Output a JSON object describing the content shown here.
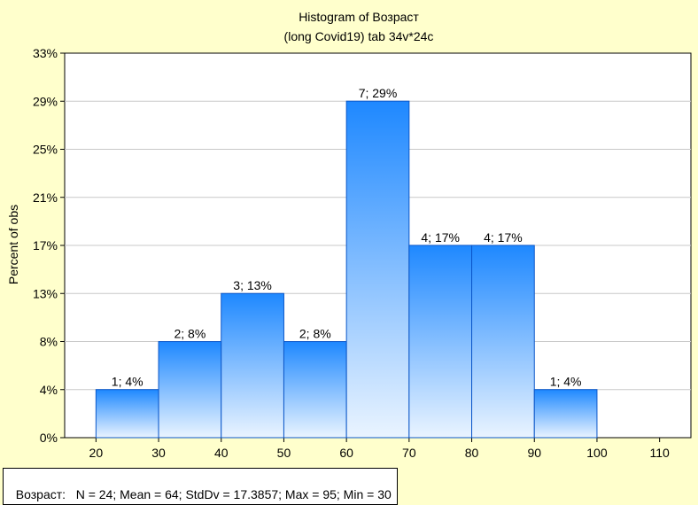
{
  "chart_data": {
    "type": "bar",
    "title": "Histogram of Возраст",
    "subtitle": "(long Covid19) tab 34v*24c",
    "ylabel": "Percent of obs",
    "xlabel": "",
    "x_ticks": [
      20,
      30,
      40,
      50,
      60,
      70,
      80,
      90,
      100,
      110
    ],
    "y_ticks": [
      "0%",
      "4%",
      "8%",
      "13%",
      "17%",
      "21%",
      "25%",
      "29%",
      "33%"
    ],
    "ylim": [
      0,
      33.33
    ],
    "xlim": [
      15,
      115
    ],
    "bins": [
      {
        "from": 20,
        "to": 30,
        "count": 1,
        "percent": 4.17,
        "label": "1; 4%"
      },
      {
        "from": 30,
        "to": 40,
        "count": 2,
        "percent": 8.33,
        "label": "2; 8%"
      },
      {
        "from": 40,
        "to": 50,
        "count": 3,
        "percent": 12.5,
        "label": "3; 13%"
      },
      {
        "from": 50,
        "to": 60,
        "count": 2,
        "percent": 8.33,
        "label": "2; 8%"
      },
      {
        "from": 60,
        "to": 70,
        "count": 7,
        "percent": 29.17,
        "label": "7; 29%"
      },
      {
        "from": 70,
        "to": 80,
        "count": 4,
        "percent": 16.67,
        "label": "4; 17%"
      },
      {
        "from": 80,
        "to": 90,
        "count": 4,
        "percent": 16.67,
        "label": "4; 17%"
      },
      {
        "from": 90,
        "to": 100,
        "count": 1,
        "percent": 4.17,
        "label": "1; 4%"
      }
    ],
    "grid": true,
    "colors": {
      "bar_top": "#1e88ff",
      "bar_bottom": "#eaf4ff",
      "bar_stroke": "#0b57c9",
      "plot_bg": "#ffffff",
      "page_bg": "#ffffcc"
    }
  },
  "stats": {
    "text": "Возраст:   N = 24; Mean = 64; StdDv = 17.3857; Max = 95; Min = 30"
  }
}
